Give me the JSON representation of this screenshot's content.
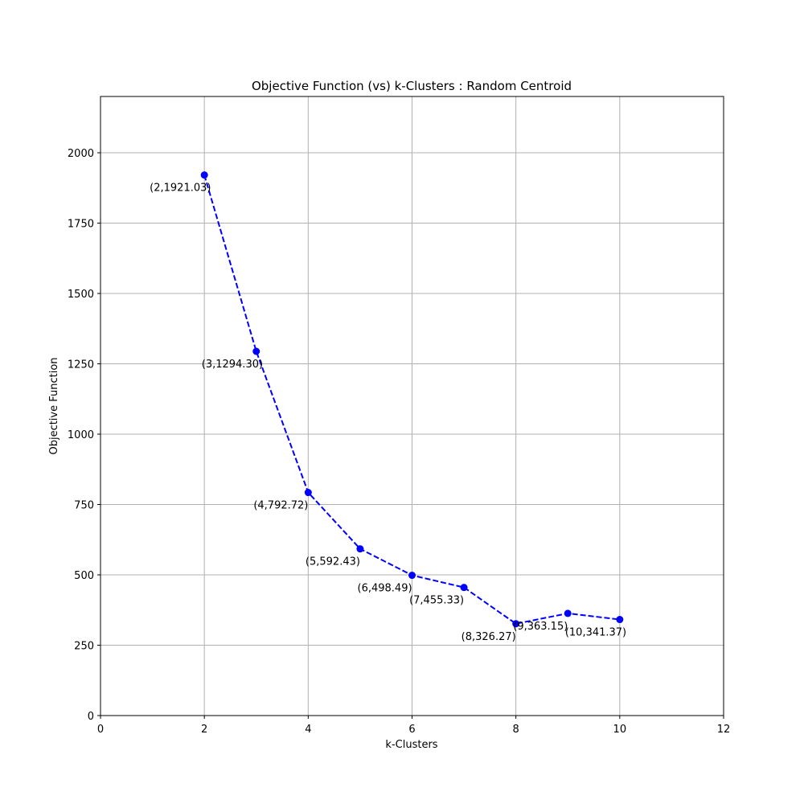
{
  "chart_data": {
    "type": "line",
    "title": "Objective Function (vs) k-Clusters : Random Centroid",
    "xlabel": "k-Clusters",
    "ylabel": "Objective Function",
    "xlim": [
      0,
      12
    ],
    "ylim": [
      0,
      2200
    ],
    "xticks": [
      0,
      2,
      4,
      6,
      8,
      10,
      12
    ],
    "yticks": [
      0,
      250,
      500,
      750,
      1000,
      1250,
      1500,
      1750,
      2000
    ],
    "grid": true,
    "line_style": "dashed",
    "marker": "circle",
    "color": "#0000ff",
    "x": [
      2,
      3,
      4,
      5,
      6,
      7,
      8,
      9,
      10
    ],
    "y": [
      1921.03,
      1294.3,
      792.72,
      592.43,
      498.49,
      455.33,
      326.27,
      363.15,
      341.37
    ],
    "point_labels": [
      "(2,1921.03)",
      "(3,1294.30)",
      "(4,792.72)",
      "(5,592.43)",
      "(6,498.49)",
      "(7,455.33)",
      "(8,326.27)",
      "(9,363.15)",
      "(10,341.37)"
    ]
  }
}
